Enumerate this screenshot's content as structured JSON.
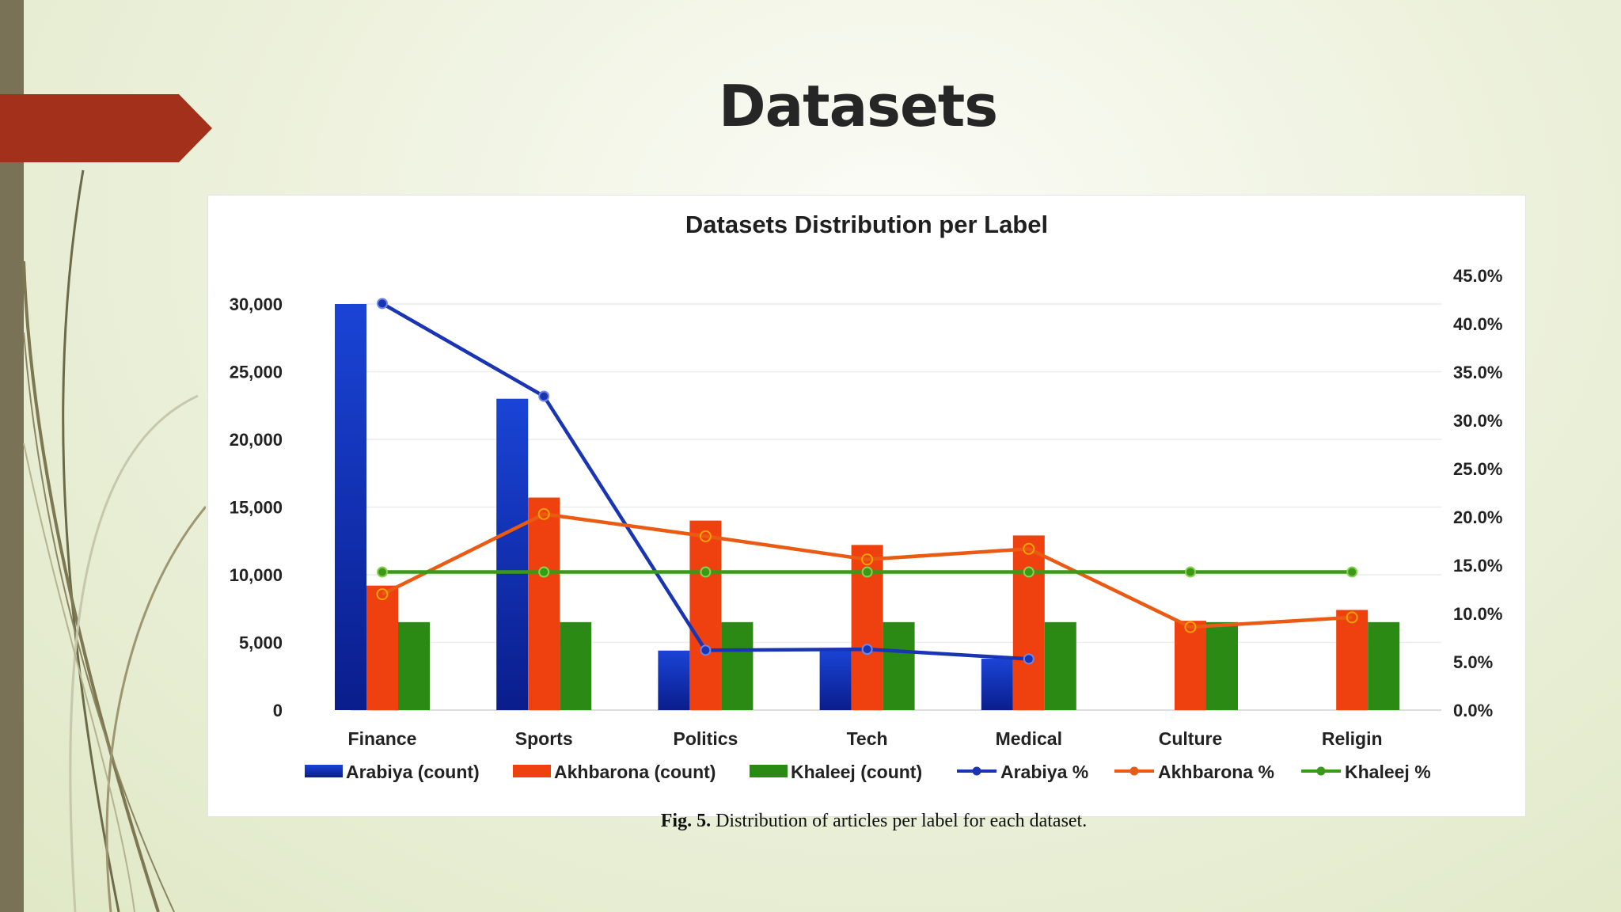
{
  "slide": {
    "title": "Datasets",
    "caption_prefix": "Fig. 5.",
    "caption_text": "Distribution of articles per label for each dataset.",
    "accent_color": "#a3301a",
    "bar_color": "#7a7256"
  },
  "chart_data": {
    "type": "bar",
    "title": "Datasets  Distribution  per Label",
    "categories": [
      "Finance",
      "Sports",
      "Politics",
      "Tech",
      "Medical",
      "Culture",
      "Religin"
    ],
    "ylim": [
      0,
      30000
    ],
    "y_ticks": [
      "0",
      "5,000",
      "10,000",
      "15,000",
      "20,000",
      "25,000",
      "30,000"
    ],
    "y2lim": [
      0,
      45
    ],
    "y2_ticks": [
      "0.0%",
      "5.0%",
      "10.0%",
      "15.0%",
      "20.0%",
      "25.0%",
      "30.0%",
      "35.0%",
      "40.0%",
      "45.0%"
    ],
    "grid": true,
    "legend_position": "bottom",
    "series": [
      {
        "name": "Arabiya (count)",
        "kind": "bar",
        "axis": "left",
        "color": "#1033c2",
        "values": [
          30000,
          23000,
          4400,
          4500,
          3800,
          null,
          null
        ]
      },
      {
        "name": "Akhbarona (count)",
        "kind": "bar",
        "axis": "left",
        "color": "#ef4110",
        "values": [
          9200,
          15700,
          14000,
          12200,
          12900,
          6600,
          7400
        ]
      },
      {
        "name": "Khaleej (count)",
        "kind": "bar",
        "axis": "left",
        "color": "#2b8a14",
        "values": [
          6500,
          6500,
          6500,
          6500,
          6500,
          6500,
          6500
        ]
      },
      {
        "name": "Arabiya %",
        "kind": "line",
        "axis": "right",
        "color": "#1a35b3",
        "values": [
          42.1,
          32.5,
          6.2,
          6.3,
          5.3,
          null,
          null
        ]
      },
      {
        "name": "Akhbarona %",
        "kind": "line",
        "axis": "right",
        "color": "#ea5a12",
        "values": [
          12.0,
          20.3,
          18.0,
          15.6,
          16.7,
          8.6,
          9.6
        ]
      },
      {
        "name": "Khaleej %",
        "kind": "line",
        "axis": "right",
        "color": "#3a9a17",
        "values": [
          14.3,
          14.3,
          14.3,
          14.3,
          14.3,
          14.3,
          14.3
        ]
      }
    ]
  }
}
